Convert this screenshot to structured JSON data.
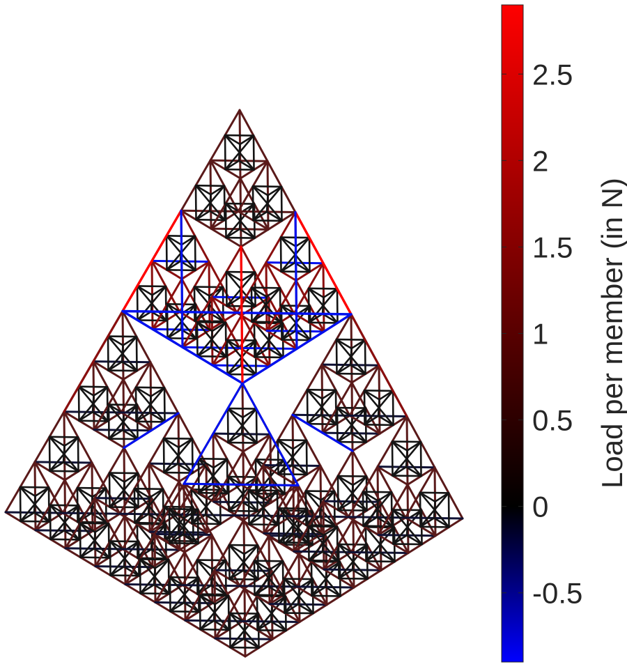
{
  "colorbar": {
    "label": "Load per member (in N)",
    "range": [
      -0.9,
      2.9
    ],
    "ticks": [
      -0.5,
      0,
      0.5,
      1,
      1.5,
      2,
      2.5
    ],
    "tick_labels": [
      "-0.5",
      "0",
      "0.5",
      "1",
      "1.5",
      "2",
      "2.5"
    ],
    "colormap": [
      "#0000ff",
      "#000000",
      "#ff0000"
    ]
  },
  "colors": {
    "compression": "#0010ee",
    "tension_high": "#ff0000",
    "tension_mid": "#8a0f0f",
    "tension_low": "#5a1a1a",
    "near_zero": "#141414",
    "slight_negative": "#101235"
  }
}
